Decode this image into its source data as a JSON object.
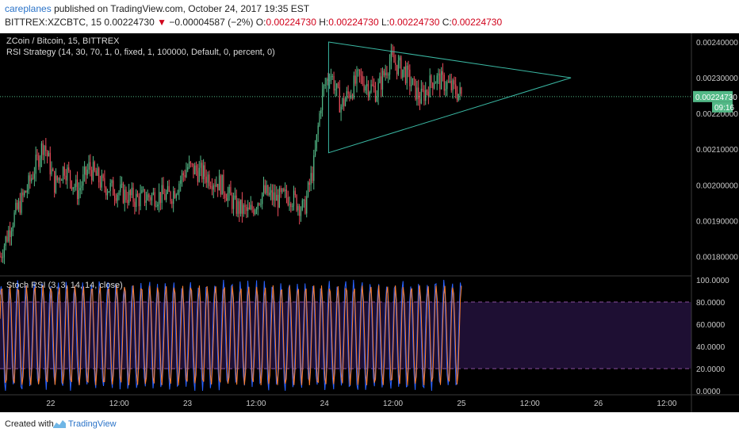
{
  "header": {
    "author": "careplanes",
    "published_text": "published on TradingView.com, October 24, 2017 19:35 EST",
    "symbol": "BITTREX:XZCBTC, 15",
    "last": "0.00224730",
    "arrow": "▼",
    "change": "−0.00004587 (−2%)",
    "o_label": "O:",
    "o_value": "0.00224730",
    "h_label": "H:",
    "h_value": "0.00224730",
    "l_label": "L:",
    "l_value": "0.00224730",
    "c_label": "C:",
    "c_value": "0.00224730"
  },
  "main_pane": {
    "title": "ZCoin / Bitcoin, 15, BITTREX",
    "indicator": "RSI Strategy (14, 30, 70, 1, 0, fixed, 1, 100000, Default, 0, percent, 0)",
    "price_ticks": [
      "0.00240000",
      "0.00230000",
      "0.00220000",
      "0.00210000",
      "0.00200000",
      "0.00190000",
      "0.00180000"
    ],
    "last_price_label": "0.00224730",
    "countdown_label": "09:16"
  },
  "osc_pane": {
    "title": "Stoch RSI (3, 3, 14, 14, close)",
    "ticks": [
      "100.0000",
      "80.0000",
      "60.0000",
      "40.0000",
      "20.0000",
      "0.0000"
    ]
  },
  "time_axis": {
    "labels": [
      "22",
      "12:00",
      "23",
      "12:00",
      "24",
      "12:00",
      "25",
      "12:00",
      "26",
      "12:00"
    ]
  },
  "footer": {
    "created_with": "Created with",
    "brand": "TradingView"
  },
  "colors": {
    "background": "#000000",
    "up": "#53b987",
    "down": "#eb4d5c",
    "triangle": "#3ab8a3",
    "stoch_k": "#2962ff",
    "stoch_d": "#ff7f2a",
    "band_fill": "#1e0f33",
    "band_line": "#8a4f9e"
  },
  "chart_data": [
    {
      "type": "candlestick",
      "title": "ZCoin / Bitcoin, 15, BITTREX",
      "x_axis": [
        "22",
        "12:00",
        "23",
        "12:00",
        "24",
        "12:00",
        "25",
        "12:00",
        "26",
        "12:00"
      ],
      "ylim": [
        0.00175,
        0.00242
      ],
      "y_ticks": [
        0.0024,
        0.0023,
        0.0022,
        0.0021,
        0.002,
        0.0019,
        0.0018
      ],
      "last_price": 0.0022473,
      "series_path": {
        "time_range_days": [
          21.63,
          25.0
        ],
        "close_keypoints": [
          [
            21.63,
            0.0018
          ],
          [
            21.72,
            0.0019
          ],
          [
            21.84,
            0.002
          ],
          [
            21.95,
            0.00212
          ],
          [
            22.03,
            0.002
          ],
          [
            22.1,
            0.00205
          ],
          [
            22.2,
            0.00198
          ],
          [
            22.28,
            0.00205
          ],
          [
            22.38,
            0.002
          ],
          [
            22.5,
            0.00198
          ],
          [
            22.62,
            0.00196
          ],
          [
            22.75,
            0.00197
          ],
          [
            22.88,
            0.00197
          ],
          [
            23.0,
            0.00205
          ],
          [
            23.12,
            0.00203
          ],
          [
            23.25,
            0.002
          ],
          [
            23.35,
            0.00194
          ],
          [
            23.45,
            0.00192
          ],
          [
            23.55,
            0.00198
          ],
          [
            23.65,
            0.00196
          ],
          [
            23.75,
            0.00197
          ],
          [
            23.85,
            0.00193
          ],
          [
            23.92,
            0.00205
          ],
          [
            23.98,
            0.00225
          ],
          [
            24.04,
            0.00232
          ],
          [
            24.12,
            0.00222
          ],
          [
            24.25,
            0.0023
          ],
          [
            24.38,
            0.00226
          ],
          [
            24.48,
            0.00235
          ],
          [
            24.58,
            0.00232
          ],
          [
            24.7,
            0.00224
          ],
          [
            24.8,
            0.0023
          ],
          [
            24.9,
            0.00228
          ],
          [
            25.0,
            0.00225
          ]
        ]
      },
      "annotations": [
        {
          "type": "triangle",
          "vertices": [
            [
              24.03,
              0.0024
            ],
            [
              25.8,
              0.0023
            ],
            [
              24.03,
              0.00209
            ]
          ]
        }
      ]
    },
    {
      "type": "line",
      "title": "Stoch RSI (3, 3, 14, 14, close)",
      "ylim": [
        0,
        100
      ],
      "y_ticks": [
        100,
        80,
        60,
        40,
        20,
        0
      ],
      "bands": [
        20,
        80
      ],
      "series": [
        {
          "name": "K",
          "color": "#2962ff"
        },
        {
          "name": "D",
          "color": "#ff7f2a"
        }
      ],
      "shape": "oscillates between roughly 0 and 100 with ~50 cycles across the visible range"
    }
  ]
}
